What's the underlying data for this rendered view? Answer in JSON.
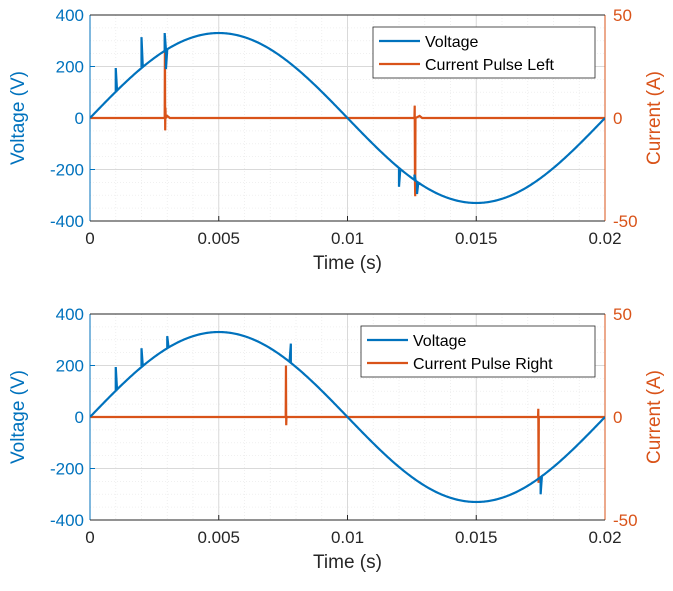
{
  "colors": {
    "voltage": "#0072BD",
    "current": "#D95319",
    "axis": "#262626",
    "grid": "#d9d9d9",
    "minor_grid": "#ececec"
  },
  "chart_data": [
    {
      "type": "line",
      "xlabel": "Time (s)",
      "ylabel_left": "Voltage (V)",
      "ylabel_right": "Current (A)",
      "xlim": [
        0,
        0.02
      ],
      "ylim_left": [
        -400,
        400
      ],
      "ylim_right": [
        -50,
        50
      ],
      "x_ticks": [
        "0",
        "0.005",
        "0.01",
        "0.015",
        "0.02"
      ],
      "y_left_ticks": [
        "400",
        "200",
        "0",
        "-200",
        "-400"
      ],
      "y_right_ticks": [
        "50",
        "0",
        "-50"
      ],
      "grid": true,
      "legend_position": "top-right",
      "series": [
        {
          "name": "Voltage",
          "axis": "left",
          "x": [
            0,
            0.001,
            0.002,
            0.0028,
            0.0029,
            0.00295,
            0.003,
            0.0031,
            0.004,
            0.005,
            0.006,
            0.007,
            0.008,
            0.009,
            0.01,
            0.011,
            0.012,
            0.0126,
            0.0127,
            0.0128,
            0.013,
            0.014,
            0.015,
            0.016,
            0.017,
            0.018,
            0.019,
            0.02
          ],
          "values": [
            0,
            194,
            314,
            255,
            330,
            190,
            270,
            260,
            314,
            330,
            314,
            267,
            194,
            102,
            0,
            -102,
            -267,
            -220,
            -295,
            -245,
            -267,
            -314,
            -330,
            -314,
            -267,
            -194,
            -102,
            0
          ]
        },
        {
          "name": "Current Pulse Left",
          "axis": "right",
          "x": [
            0,
            0.0029,
            0.00291,
            0.00292,
            0.00293,
            0.00294,
            0.003,
            0.0031,
            0.0126,
            0.01261,
            0.01262,
            0.01263,
            0.01264,
            0.0128,
            0.0129,
            0.02
          ],
          "values": [
            0,
            0,
            40,
            -6,
            5,
            0,
            1,
            0,
            0,
            6,
            -31,
            -38,
            0,
            1,
            0,
            0
          ]
        }
      ]
    },
    {
      "type": "line",
      "xlabel": "Time (s)",
      "ylabel_left": "Voltage (V)",
      "ylabel_right": "Current (A)",
      "xlim": [
        0,
        0.02
      ],
      "ylim_left": [
        -400,
        400
      ],
      "ylim_right": [
        -50,
        50
      ],
      "x_ticks": [
        "0",
        "0.005",
        "0.01",
        "0.015",
        "0.02"
      ],
      "y_left_ticks": [
        "400",
        "200",
        "0",
        "-200",
        "-400"
      ],
      "y_right_ticks": [
        "50",
        "0",
        "-50"
      ],
      "grid": true,
      "legend_position": "top-right",
      "series": [
        {
          "name": "Voltage",
          "axis": "left",
          "x": [
            0,
            0.001,
            0.002,
            0.003,
            0.004,
            0.005,
            0.006,
            0.007,
            0.0077,
            0.0078,
            0.0079,
            0.008,
            0.009,
            0.01,
            0.011,
            0.012,
            0.013,
            0.014,
            0.015,
            0.016,
            0.017,
            0.0174,
            0.0175,
            0.0176,
            0.018,
            0.019,
            0.02
          ],
          "values": [
            0,
            194,
            267,
            314,
            314,
            330,
            314,
            267,
            220,
            285,
            200,
            194,
            102,
            0,
            -102,
            -194,
            -267,
            -314,
            -330,
            -314,
            -267,
            -235,
            -300,
            -215,
            -194,
            -102,
            0
          ]
        },
        {
          "name": "Current Pulse Right",
          "axis": "right",
          "x": [
            0,
            0.0076,
            0.00761,
            0.00762,
            0.00763,
            0.0077,
            0.0174,
            0.01741,
            0.01742,
            0.01743,
            0.0175,
            0.02
          ],
          "values": [
            0,
            0,
            25,
            -4,
            0,
            0,
            0,
            4,
            -32,
            0,
            0,
            0
          ]
        }
      ]
    }
  ]
}
